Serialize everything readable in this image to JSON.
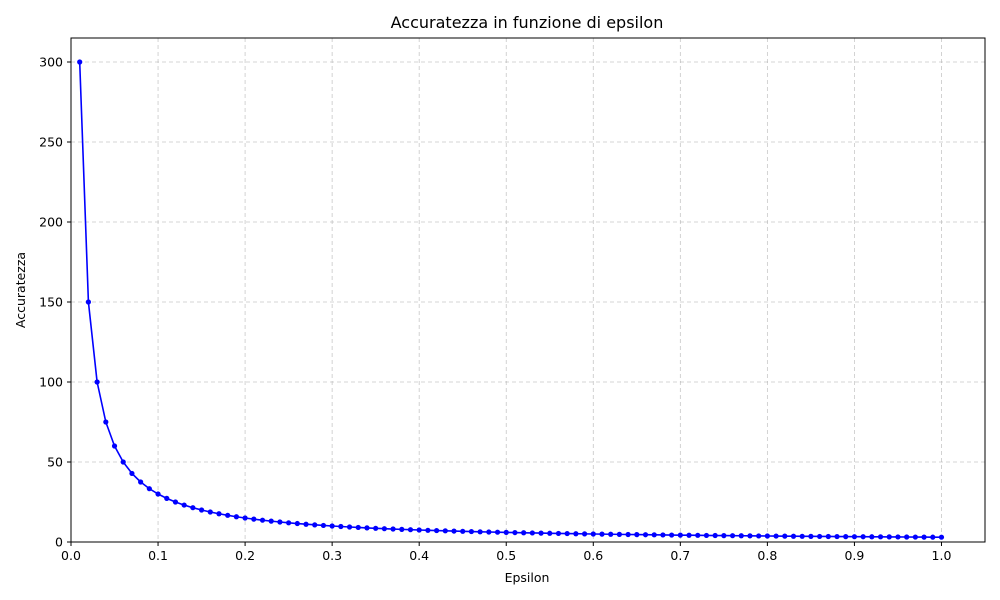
{
  "chart_data": {
    "type": "line",
    "title": "Accuratezza in funzione di epsilon",
    "xlabel": "Epsilon",
    "ylabel": "Accuratezza",
    "xlim": [
      0.0,
      1.05
    ],
    "ylim": [
      0,
      315
    ],
    "xticks": [
      0.0,
      0.1,
      0.2,
      0.3,
      0.4,
      0.5,
      0.6,
      0.7,
      0.8,
      0.9,
      1.0
    ],
    "xtick_labels": [
      "0.0",
      "0.1",
      "0.2",
      "0.3",
      "0.4",
      "0.5",
      "0.6",
      "0.7",
      "0.8",
      "0.9",
      "1.0"
    ],
    "yticks": [
      0,
      50,
      100,
      150,
      200,
      250,
      300
    ],
    "ytick_labels": [
      "0",
      "50",
      "100",
      "150",
      "200",
      "250",
      "300"
    ],
    "grid": true,
    "series": [
      {
        "color": "#0000ff",
        "marker": "circle",
        "x": [
          0.01,
          0.02,
          0.03,
          0.04,
          0.05,
          0.06,
          0.07,
          0.08,
          0.09,
          0.1,
          0.11,
          0.12,
          0.13,
          0.14,
          0.15,
          0.16,
          0.17,
          0.18,
          0.19,
          0.2,
          0.21,
          0.22,
          0.23,
          0.24,
          0.25,
          0.26,
          0.27,
          0.28,
          0.29,
          0.3,
          0.31,
          0.32,
          0.33,
          0.34,
          0.35,
          0.36,
          0.37,
          0.38,
          0.39,
          0.4,
          0.41,
          0.42,
          0.43,
          0.44,
          0.45,
          0.46,
          0.47,
          0.48,
          0.49,
          0.5,
          0.51,
          0.52,
          0.53,
          0.54,
          0.55,
          0.56,
          0.57,
          0.58,
          0.59,
          0.6,
          0.61,
          0.62,
          0.63,
          0.64,
          0.65,
          0.66,
          0.67,
          0.68,
          0.69,
          0.7,
          0.71,
          0.72,
          0.73,
          0.74,
          0.75,
          0.76,
          0.77,
          0.78,
          0.79,
          0.8,
          0.81,
          0.82,
          0.83,
          0.84,
          0.85,
          0.86,
          0.87,
          0.88,
          0.89,
          0.9,
          0.91,
          0.92,
          0.93,
          0.94,
          0.95,
          0.96,
          0.97,
          0.98,
          0.99,
          1.0
        ],
        "y": [
          300.0,
          150.0,
          100.0,
          75.0,
          60.0,
          50.0,
          42.86,
          37.5,
          33.33,
          30.0,
          27.27,
          25.0,
          23.08,
          21.43,
          20.0,
          18.75,
          17.65,
          16.67,
          15.79,
          15.0,
          14.29,
          13.64,
          13.04,
          12.5,
          12.0,
          11.54,
          11.11,
          10.71,
          10.34,
          10.0,
          9.68,
          9.38,
          9.09,
          8.82,
          8.57,
          8.33,
          8.11,
          7.89,
          7.69,
          7.5,
          7.32,
          7.14,
          6.98,
          6.82,
          6.67,
          6.52,
          6.38,
          6.25,
          6.12,
          6.0,
          5.88,
          5.77,
          5.66,
          5.56,
          5.45,
          5.36,
          5.26,
          5.17,
          5.08,
          5.0,
          4.92,
          4.84,
          4.76,
          4.69,
          4.62,
          4.55,
          4.48,
          4.41,
          4.35,
          4.29,
          4.23,
          4.17,
          4.11,
          4.05,
          4.0,
          3.95,
          3.9,
          3.85,
          3.8,
          3.75,
          3.7,
          3.66,
          3.61,
          3.57,
          3.53,
          3.49,
          3.45,
          3.41,
          3.37,
          3.33,
          3.3,
          3.26,
          3.23,
          3.19,
          3.16,
          3.13,
          3.09,
          3.06,
          3.03,
          3.0
        ]
      }
    ]
  }
}
